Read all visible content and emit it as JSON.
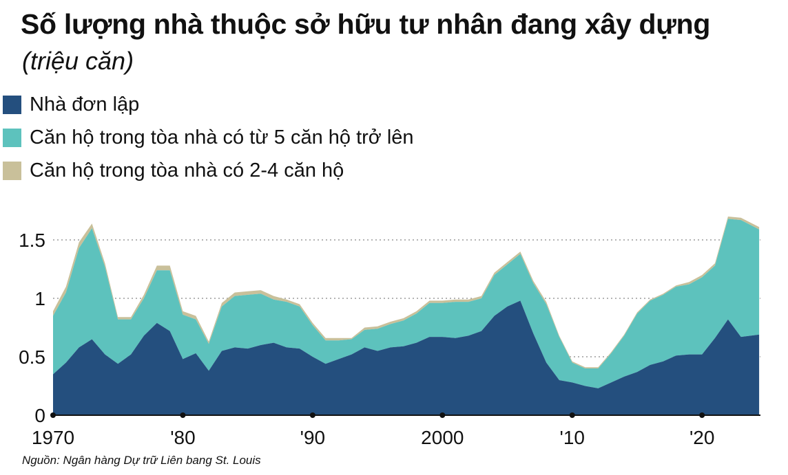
{
  "header": {
    "title": "Số lượng nhà thuộc sở hữu tư nhân đang xây dựng",
    "subtitle": "(triệu căn)"
  },
  "source": "Nguồn: Ngân hàng Dự trữ Liên bang St. Louis",
  "colors": {
    "single_family": "#244f7e",
    "five_plus": "#5dc2bd",
    "two_to_four": "#c9c09a",
    "grid": "#9a9a9a",
    "axis": "#111111"
  },
  "chart_data": {
    "type": "area",
    "stacked": true,
    "title": "Số lượng nhà thuộc sở hữu tư nhân đang xây dựng",
    "subtitle": "(triệu căn)",
    "xlim": [
      1970,
      2024.5
    ],
    "ylim": [
      0,
      1.75
    ],
    "yticks": [
      {
        "value": 0,
        "label": "0"
      },
      {
        "value": 0.5,
        "label": "0.5"
      },
      {
        "value": 1,
        "label": "1"
      },
      {
        "value": 1.5,
        "label": "1.5"
      }
    ],
    "xticks": [
      {
        "value": 1970,
        "label": "1970"
      },
      {
        "value": 1980,
        "label": "'80"
      },
      {
        "value": 1990,
        "label": "'90"
      },
      {
        "value": 2000,
        "label": "2000"
      },
      {
        "value": 2010,
        "label": "'10"
      },
      {
        "value": 2020,
        "label": "'20"
      }
    ],
    "grid": "horizontal dotted",
    "legend_position": "top-left",
    "x": [
      1970,
      1971,
      1972,
      1973,
      1974,
      1975,
      1976,
      1977,
      1978,
      1979,
      1980,
      1981,
      1982,
      1983,
      1984,
      1985,
      1986,
      1987,
      1988,
      1989,
      1990,
      1991,
      1992,
      1993,
      1994,
      1995,
      1996,
      1997,
      1998,
      1999,
      2000,
      2001,
      2002,
      2003,
      2004,
      2005,
      2006,
      2007,
      2008,
      2009,
      2010,
      2011,
      2012,
      2013,
      2014,
      2015,
      2016,
      2017,
      2018,
      2019,
      2020,
      2021,
      2022,
      2023,
      2024.4
    ],
    "series": [
      {
        "name": "Nhà đơn lập",
        "values": [
          0.35,
          0.45,
          0.58,
          0.65,
          0.52,
          0.44,
          0.52,
          0.68,
          0.79,
          0.72,
          0.48,
          0.53,
          0.38,
          0.55,
          0.58,
          0.57,
          0.6,
          0.62,
          0.58,
          0.57,
          0.5,
          0.44,
          0.48,
          0.52,
          0.58,
          0.55,
          0.58,
          0.59,
          0.62,
          0.67,
          0.67,
          0.66,
          0.68,
          0.72,
          0.85,
          0.93,
          0.98,
          0.7,
          0.45,
          0.3,
          0.28,
          0.25,
          0.23,
          0.28,
          0.33,
          0.37,
          0.43,
          0.46,
          0.51,
          0.52,
          0.52,
          0.66,
          0.82,
          0.67,
          0.69
        ]
      },
      {
        "name": "Căn hộ trong tòa nhà có từ 5 căn hộ trở lên",
        "values": [
          0.5,
          0.6,
          0.85,
          0.95,
          0.75,
          0.38,
          0.3,
          0.32,
          0.45,
          0.52,
          0.38,
          0.29,
          0.23,
          0.38,
          0.44,
          0.46,
          0.44,
          0.37,
          0.39,
          0.36,
          0.27,
          0.2,
          0.16,
          0.13,
          0.15,
          0.19,
          0.2,
          0.22,
          0.25,
          0.29,
          0.29,
          0.31,
          0.29,
          0.28,
          0.35,
          0.36,
          0.4,
          0.43,
          0.5,
          0.37,
          0.17,
          0.15,
          0.17,
          0.25,
          0.35,
          0.5,
          0.55,
          0.57,
          0.59,
          0.6,
          0.66,
          0.62,
          0.86,
          1.0,
          0.9
        ]
      },
      {
        "name": "Căn hộ trong tòa nhà có 2-4 căn hộ",
        "values": [
          0.04,
          0.05,
          0.05,
          0.04,
          0.03,
          0.02,
          0.02,
          0.03,
          0.04,
          0.04,
          0.03,
          0.03,
          0.02,
          0.03,
          0.03,
          0.03,
          0.03,
          0.03,
          0.02,
          0.02,
          0.02,
          0.02,
          0.02,
          0.01,
          0.02,
          0.02,
          0.02,
          0.02,
          0.02,
          0.02,
          0.02,
          0.02,
          0.02,
          0.02,
          0.02,
          0.02,
          0.02,
          0.02,
          0.02,
          0.01,
          0.01,
          0.01,
          0.01,
          0.01,
          0.01,
          0.01,
          0.01,
          0.01,
          0.01,
          0.02,
          0.02,
          0.02,
          0.02,
          0.02,
          0.02
        ]
      }
    ]
  }
}
